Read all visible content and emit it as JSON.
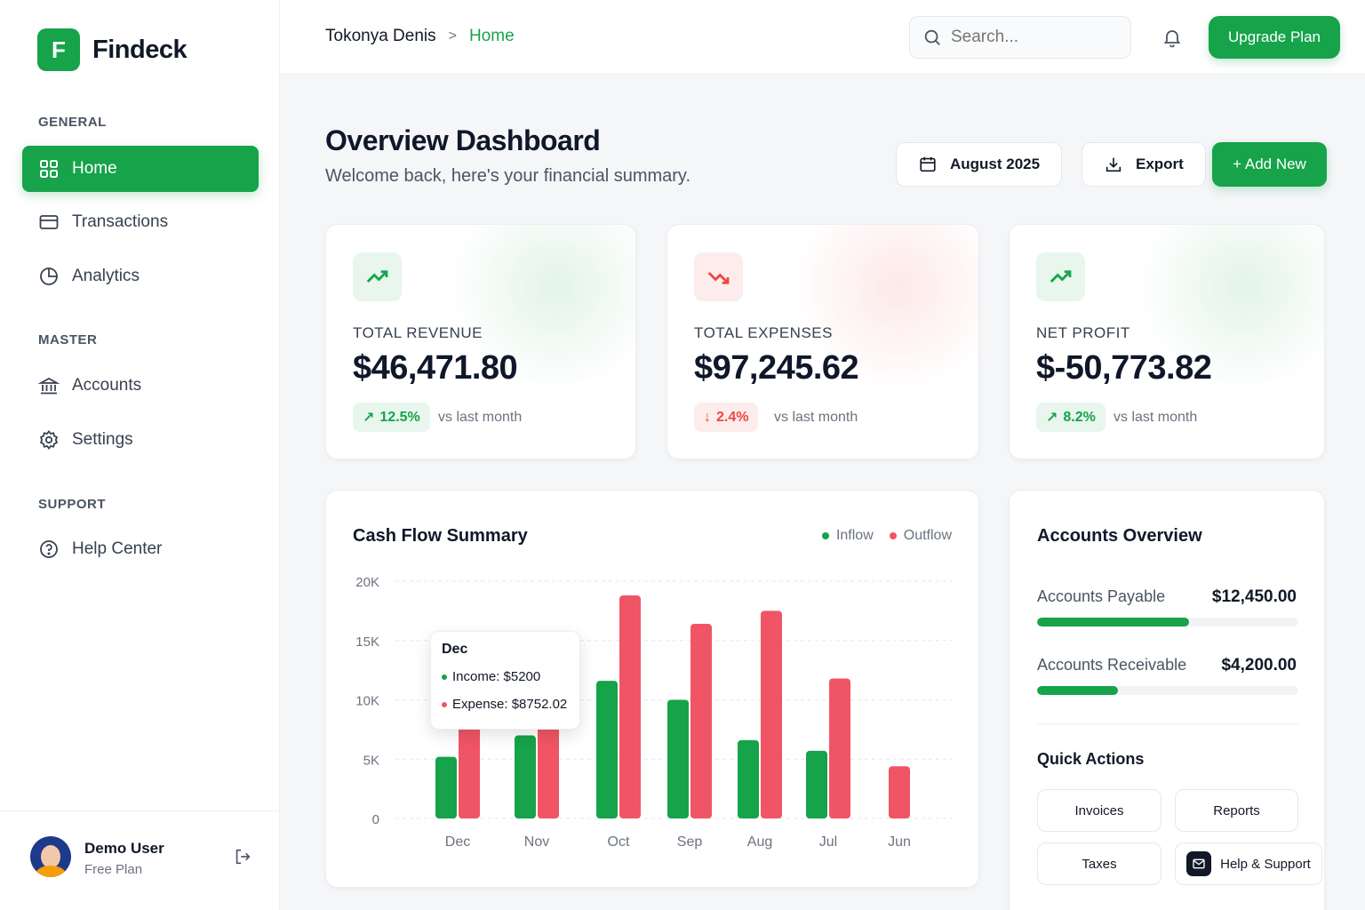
{
  "brand": {
    "logo_letter": "F",
    "name": "Findeck"
  },
  "sidebar": {
    "sections": {
      "general": "GENERAL",
      "master": "MASTER",
      "support": "SUPPORT"
    },
    "items": [
      {
        "label": "Home",
        "icon": "grid-icon",
        "active": true
      },
      {
        "label": "Transactions",
        "icon": "card-icon"
      },
      {
        "label": "Analytics",
        "icon": "pie-chart-icon"
      },
      {
        "label": "Accounts",
        "icon": "bank-icon"
      },
      {
        "label": "Settings",
        "icon": "gear-icon"
      },
      {
        "label": "Help Center",
        "icon": "help-circle-icon"
      }
    ],
    "user": {
      "name": "Demo User",
      "plan": "Free Plan"
    }
  },
  "header": {
    "breadcrumb_user": "Tokonya Denis",
    "breadcrumb_sep": ">",
    "breadcrumb_current": "Home",
    "search_placeholder": "Search...",
    "upgrade_label": "Upgrade Plan"
  },
  "page": {
    "title": "Overview Dashboard",
    "subtitle": "Welcome back, here's your financial summary.",
    "date_label": "August 2025",
    "export_label": "Export",
    "add_new_label": "+ Add New"
  },
  "stats": [
    {
      "label": "TOTAL REVENUE",
      "value": "$46,471.80",
      "change": "12.5%",
      "direction": "up",
      "vs": "vs last month",
      "color": "#16a34a"
    },
    {
      "label": "TOTAL EXPENSES",
      "value": "$97,245.62",
      "change": "2.4%",
      "direction": "down",
      "vs": "vs last month",
      "color": "#ef4444"
    },
    {
      "label": "NET PROFIT",
      "value": "$-50,773.82",
      "change": "8.2%",
      "direction": "up",
      "vs": "vs last month",
      "color": "#16a34a"
    }
  ],
  "chart_data": {
    "type": "bar",
    "title": "Cash Flow Summary",
    "categories": [
      "Dec",
      "Nov",
      "Oct",
      "Sep",
      "Aug",
      "Jul",
      "Jun"
    ],
    "series": [
      {
        "name": "Inflow",
        "color": "#16a34a",
        "values": [
          5200,
          7000,
          11600,
          10000,
          6600,
          5700,
          0
        ]
      },
      {
        "name": "Outflow",
        "color": "#f05565",
        "values": [
          8752.02,
          8600,
          18800,
          16400,
          17500,
          11800,
          4400
        ]
      }
    ],
    "y_ticks": [
      "0",
      "5K",
      "10K",
      "15K",
      "20K"
    ],
    "ylim": [
      0,
      20000
    ],
    "grid": true,
    "legend": "top-right",
    "tooltip": {
      "title": "Dec",
      "income": "Income: $5200",
      "expense": "Expense: $8752.02"
    }
  },
  "accounts_overview": {
    "title": "Accounts Overview",
    "rows": [
      {
        "label": "Accounts Payable",
        "value": "$12,450.00",
        "progress": 0.58
      },
      {
        "label": "Accounts Receivable",
        "value": "$4,200.00",
        "progress": 0.31
      }
    ],
    "quick_actions_title": "Quick Actions",
    "quick_actions": [
      "Invoices",
      "Reports",
      "Taxes",
      "Help & Support"
    ]
  }
}
